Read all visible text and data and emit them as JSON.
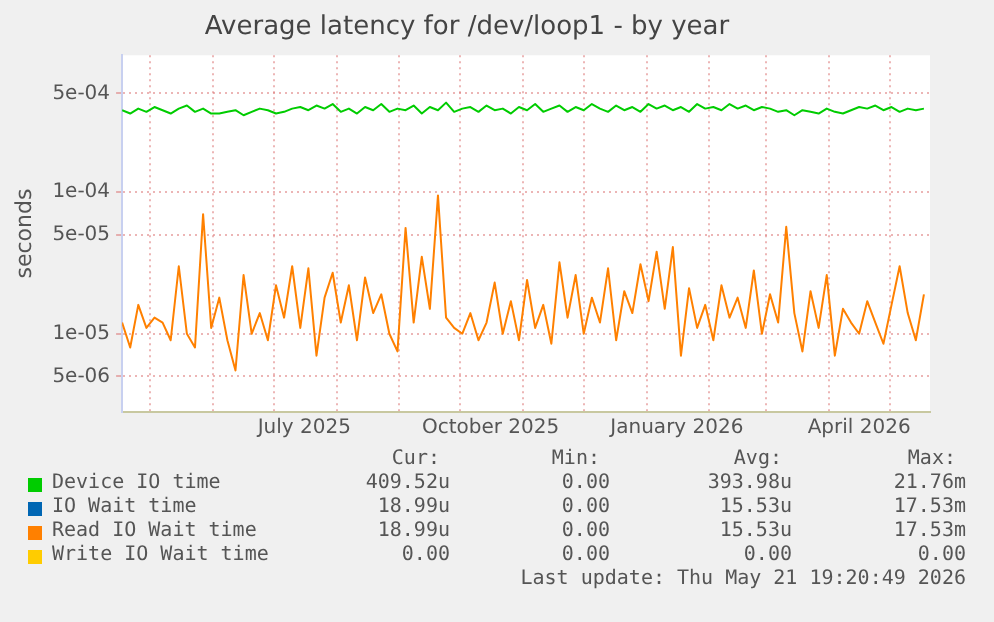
{
  "chart_data": {
    "type": "line",
    "title": "Average latency for /dev/loop1 - by year",
    "ylabel": "seconds",
    "log": true,
    "grid": true,
    "legend": "bottom",
    "ylim": [
      2.8e-06,
      0.00093
    ],
    "yticks": [
      {
        "value": 5e-06,
        "label": "5e-06"
      },
      {
        "value": 1e-05,
        "label": "1e-05"
      },
      {
        "value": 5e-05,
        "label": "5e-05"
      },
      {
        "value": 0.0001,
        "label": "1e-04"
      },
      {
        "value": 0.0005,
        "label": "5e-04"
      }
    ],
    "xlim": [
      "2025-04-17",
      "2026-05-21"
    ],
    "xticks": [
      {
        "value": "2025-05-01",
        "label": null
      },
      {
        "value": "2025-06-01",
        "label": null
      },
      {
        "value": "2025-07-01",
        "label": null
      },
      {
        "value": "2025-07-16",
        "label": "July 2025"
      },
      {
        "value": "2025-08-01",
        "label": null
      },
      {
        "value": "2025-09-01",
        "label": null
      },
      {
        "value": "2025-10-01",
        "label": null
      },
      {
        "value": "2025-10-16",
        "label": "October 2025"
      },
      {
        "value": "2025-11-01",
        "label": null
      },
      {
        "value": "2025-12-01",
        "label": null
      },
      {
        "value": "2026-01-01",
        "label": null
      },
      {
        "value": "2026-01-16",
        "label": "January 2026"
      },
      {
        "value": "2026-02-01",
        "label": null
      },
      {
        "value": "2026-03-01",
        "label": null
      },
      {
        "value": "2026-04-01",
        "label": null
      },
      {
        "value": "2026-04-16",
        "label": "April 2026"
      },
      {
        "value": "2026-05-01",
        "label": null
      }
    ],
    "x": [
      "2025-04-17",
      "2025-04-21",
      "2025-04-25",
      "2025-04-29",
      "2025-05-03",
      "2025-05-07",
      "2025-05-11",
      "2025-05-15",
      "2025-05-19",
      "2025-05-23",
      "2025-05-27",
      "2025-05-31",
      "2025-06-04",
      "2025-06-08",
      "2025-06-12",
      "2025-06-16",
      "2025-06-20",
      "2025-06-24",
      "2025-06-28",
      "2025-07-02",
      "2025-07-06",
      "2025-07-10",
      "2025-07-14",
      "2025-07-18",
      "2025-07-22",
      "2025-07-26",
      "2025-07-30",
      "2025-08-03",
      "2025-08-07",
      "2025-08-11",
      "2025-08-15",
      "2025-08-19",
      "2025-08-23",
      "2025-08-27",
      "2025-08-31",
      "2025-09-04",
      "2025-09-08",
      "2025-09-12",
      "2025-09-16",
      "2025-09-20",
      "2025-09-24",
      "2025-09-28",
      "2025-10-02",
      "2025-10-06",
      "2025-10-10",
      "2025-10-14",
      "2025-10-18",
      "2025-10-22",
      "2025-10-26",
      "2025-10-30",
      "2025-11-03",
      "2025-11-07",
      "2025-11-11",
      "2025-11-15",
      "2025-11-19",
      "2025-11-23",
      "2025-11-27",
      "2025-12-01",
      "2025-12-05",
      "2025-12-09",
      "2025-12-13",
      "2025-12-17",
      "2025-12-21",
      "2025-12-25",
      "2025-12-29",
      "2026-01-02",
      "2026-01-06",
      "2026-01-10",
      "2026-01-14",
      "2026-01-18",
      "2026-01-22",
      "2026-01-26",
      "2026-01-30",
      "2026-02-03",
      "2026-02-07",
      "2026-02-11",
      "2026-02-15",
      "2026-02-19",
      "2026-02-23",
      "2026-02-27",
      "2026-03-03",
      "2026-03-07",
      "2026-03-11",
      "2026-03-15",
      "2026-03-19",
      "2026-03-23",
      "2026-03-27",
      "2026-03-31",
      "2026-04-04",
      "2026-04-08",
      "2026-04-12",
      "2026-04-16",
      "2026-04-20",
      "2026-04-24",
      "2026-04-28",
      "2026-05-02",
      "2026-05-06",
      "2026-05-10",
      "2026-05-14",
      "2026-05-18"
    ],
    "series": [
      {
        "name": "Device IO time",
        "color": "#00cc00",
        "values": [
          0.00038,
          0.00036,
          0.00039,
          0.00037,
          0.0004,
          0.00038,
          0.00036,
          0.00039,
          0.00041,
          0.00037,
          0.00039,
          0.00036,
          0.00036,
          0.00037,
          0.00038,
          0.00035,
          0.00037,
          0.00039,
          0.00038,
          0.00036,
          0.00037,
          0.00039,
          0.0004,
          0.00038,
          0.00041,
          0.00039,
          0.00042,
          0.00037,
          0.00039,
          0.00036,
          0.0004,
          0.00038,
          0.00042,
          0.00037,
          0.00039,
          0.00038,
          0.00041,
          0.00036,
          0.0004,
          0.00038,
          0.00043,
          0.00037,
          0.00039,
          0.0004,
          0.00037,
          0.00041,
          0.00038,
          0.00039,
          0.00036,
          0.0004,
          0.00038,
          0.00042,
          0.00037,
          0.00039,
          0.00041,
          0.00037,
          0.0004,
          0.00038,
          0.00042,
          0.00039,
          0.00037,
          0.00041,
          0.00038,
          0.0004,
          0.00037,
          0.00042,
          0.00039,
          0.00041,
          0.00038,
          0.0004,
          0.00037,
          0.00042,
          0.00039,
          0.0004,
          0.00038,
          0.00042,
          0.00039,
          0.00041,
          0.00038,
          0.0004,
          0.00039,
          0.00037,
          0.00038,
          0.00035,
          0.00038,
          0.00037,
          0.00036,
          0.00039,
          0.00037,
          0.00036,
          0.00038,
          0.0004,
          0.00039,
          0.00041,
          0.00038,
          0.0004,
          0.00037,
          0.00039,
          0.00038,
          0.00039
        ]
      },
      {
        "name": "IO Wait time",
        "color": "#0066b3",
        "values": [
          null,
          null,
          null,
          null,
          null,
          null,
          null,
          null,
          null,
          null,
          null,
          null,
          null,
          null,
          null,
          null,
          null,
          null,
          null,
          null,
          null,
          null,
          null,
          null,
          null,
          null,
          null,
          null,
          null,
          null,
          null,
          null,
          null,
          null,
          null,
          null,
          null,
          null,
          null,
          null,
          null,
          null,
          null,
          null,
          null,
          null,
          null,
          null,
          null,
          null,
          null,
          null,
          null,
          null,
          null,
          null,
          null,
          null,
          null,
          null,
          null,
          null,
          null,
          null,
          null,
          null,
          null,
          null,
          null,
          null,
          null,
          null,
          null,
          null,
          null,
          null,
          null,
          null,
          null,
          null,
          null,
          null,
          null,
          null,
          null,
          null,
          null,
          null,
          null,
          null,
          null,
          null,
          null,
          null,
          null,
          null,
          null,
          null,
          null,
          null
        ]
      },
      {
        "name": "Read IO Wait time",
        "color": "#ff8000",
        "values": [
          1.2e-05,
          8e-06,
          1.6e-05,
          1.1e-05,
          1.3e-05,
          1.2e-05,
          9e-06,
          3e-05,
          1e-05,
          8e-06,
          7e-05,
          1.1e-05,
          1.8e-05,
          9e-06,
          5.5e-06,
          2.6e-05,
          1e-05,
          1.4e-05,
          9e-06,
          2.2e-05,
          1.3e-05,
          3e-05,
          1.1e-05,
          2.9e-05,
          7e-06,
          1.8e-05,
          2.7e-05,
          1.2e-05,
          2.2e-05,
          9e-06,
          2.5e-05,
          1.4e-05,
          1.9e-05,
          1e-05,
          7.5e-06,
          5.6e-05,
          1.2e-05,
          3.5e-05,
          1.5e-05,
          9.5e-05,
          1.3e-05,
          1.1e-05,
          1e-05,
          1.4e-05,
          9e-06,
          1.2e-05,
          2.3e-05,
          1e-05,
          1.7e-05,
          9e-06,
          2.4e-05,
          1.1e-05,
          1.6e-05,
          8.5e-06,
          3.2e-05,
          1.3e-05,
          2.6e-05,
          1e-05,
          1.8e-05,
          1.2e-05,
          2.9e-05,
          9e-06,
          2e-05,
          1.4e-05,
          3.1e-05,
          1.7e-05,
          3.8e-05,
          1.5e-05,
          4.1e-05,
          7e-06,
          2.1e-05,
          1.1e-05,
          1.6e-05,
          9e-06,
          2.2e-05,
          1.3e-05,
          1.8e-05,
          1.1e-05,
          2.8e-05,
          1e-05,
          1.9e-05,
          1.2e-05,
          5.7e-05,
          1.4e-05,
          7.5e-06,
          2e-05,
          1.1e-05,
          2.6e-05,
          7e-06,
          1.5e-05,
          1.2e-05,
          1e-05,
          1.7e-05,
          1.2e-05,
          8.5e-06,
          1.6e-05,
          3e-05,
          1.4e-05,
          9e-06,
          1.9e-05
        ]
      },
      {
        "name": "Write IO Wait time",
        "color": "#ffcc00",
        "values": [
          null,
          null,
          null,
          null,
          null,
          null,
          null,
          null,
          null,
          null,
          null,
          null,
          null,
          null,
          null,
          null,
          null,
          null,
          null,
          null,
          null,
          null,
          null,
          null,
          null,
          null,
          null,
          null,
          null,
          null,
          null,
          null,
          null,
          null,
          null,
          null,
          null,
          null,
          null,
          null,
          null,
          null,
          null,
          null,
          null,
          null,
          null,
          null,
          null,
          null,
          null,
          null,
          null,
          null,
          null,
          null,
          null,
          null,
          null,
          null,
          null,
          null,
          null,
          null,
          null,
          null,
          null,
          null,
          null,
          null,
          null,
          null,
          null,
          null,
          null,
          null,
          null,
          null,
          null,
          null,
          null,
          null,
          null,
          null,
          null,
          null,
          null,
          null,
          null,
          null,
          null,
          null,
          null,
          null,
          null,
          null,
          null,
          null,
          null,
          null
        ]
      }
    ],
    "annotations": [
      "Cur:",
      "Min:",
      "Avg:",
      "Max:",
      "409.52u",
      "0.00",
      "393.98u",
      "21.76m",
      "18.99u",
      "0.00",
      "15.53u",
      "17.53m",
      "18.99u",
      "0.00",
      "15.53u",
      "17.53m",
      "0.00",
      "0.00",
      "0.00",
      "0.00",
      "Last update: Thu May 21 19:20:49 2026"
    ]
  }
}
